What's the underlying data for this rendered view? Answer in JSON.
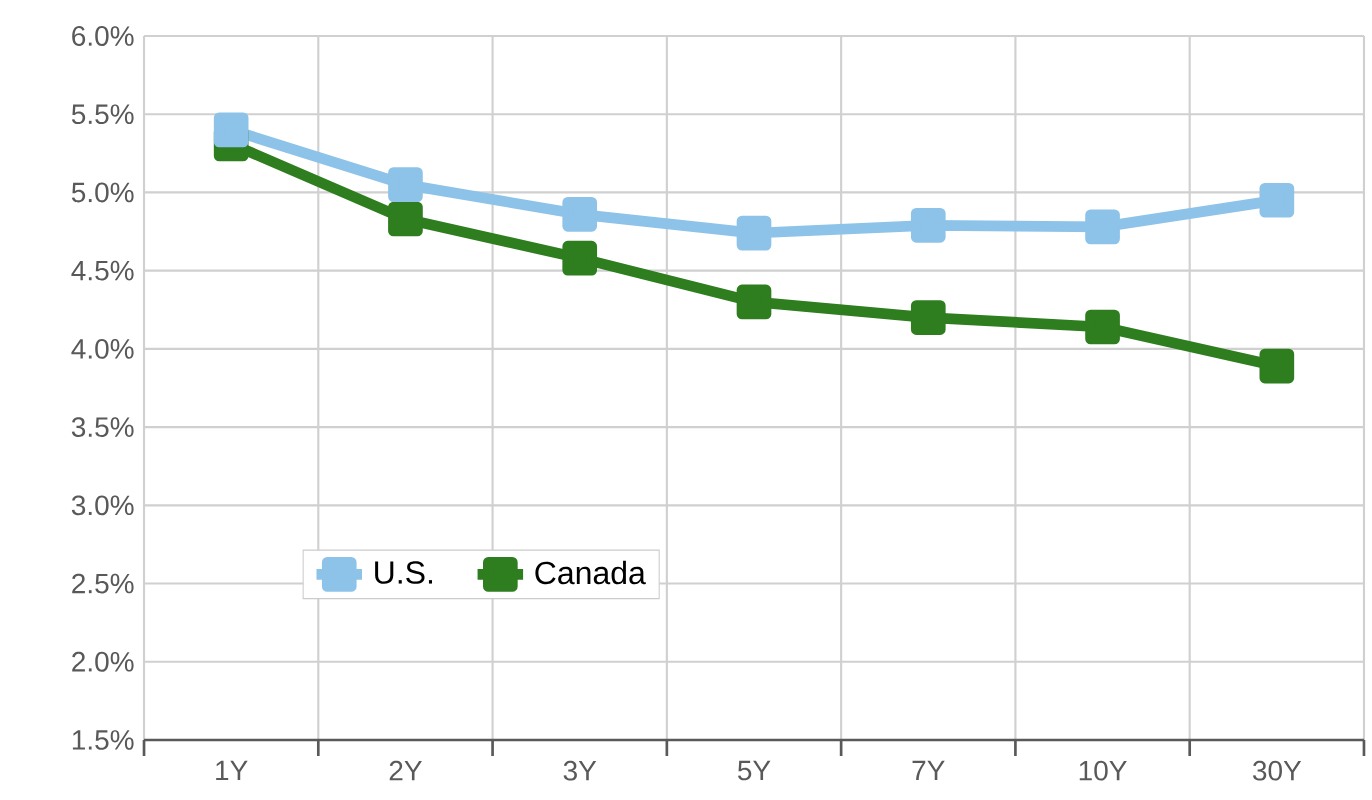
{
  "chart_data": {
    "type": "line",
    "categories": [
      "1Y",
      "2Y",
      "3Y",
      "5Y",
      "7Y",
      "10Y",
      "30Y"
    ],
    "series": [
      {
        "name": "U.S.",
        "color": "#8dc3e8",
        "values": [
          5.4,
          5.05,
          4.86,
          4.74,
          4.79,
          4.78,
          4.95
        ]
      },
      {
        "name": "Canada",
        "color": "#2e7d1f",
        "values": [
          5.31,
          4.83,
          4.58,
          4.3,
          4.2,
          4.14,
          3.89
        ]
      }
    ],
    "ylim": [
      1.5,
      6.0
    ],
    "yticks": [
      {
        "value": 1.5,
        "label": "1.5%"
      },
      {
        "value": 2.0,
        "label": "2.0%"
      },
      {
        "value": 2.5,
        "label": "2.5%"
      },
      {
        "value": 3.0,
        "label": "3.0%"
      },
      {
        "value": 3.5,
        "label": "3.5%"
      },
      {
        "value": 4.0,
        "label": "4.0%"
      },
      {
        "value": 4.5,
        "label": "4.5%"
      },
      {
        "value": 5.0,
        "label": "5.0%"
      },
      {
        "value": 5.5,
        "label": "5.5%"
      },
      {
        "value": 6.0,
        "label": "6.0%"
      }
    ],
    "grid": true,
    "legend": "bottom left",
    "marker": "square",
    "line_style": "solid"
  }
}
